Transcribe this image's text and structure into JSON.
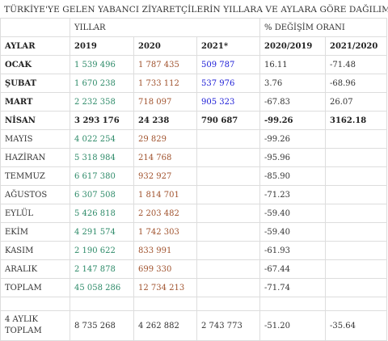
{
  "title": "TÜRKİYE'YE GELEN YABANCI ZİYARETÇİLERİN YILLARA VE AYLARA GÖRE DAĞILIMI",
  "header": {
    "group_years": "YILLAR",
    "group_change": "% DEĞİŞİM ORANI",
    "col_month": "AYLAR",
    "col_2019": "2019",
    "col_2020": "2020",
    "col_2021": "2021*",
    "col_ch1": "2020/2019",
    "col_ch2": "2021/2020"
  },
  "rows": [
    {
      "month": "OCAK",
      "y2019": "1 539 496",
      "y2020": "1 787 435",
      "y2021": "509 787",
      "ch1": "16.11",
      "ch2": "-71.48",
      "bold": true
    },
    {
      "month": "ŞUBAT",
      "y2019": "1 670 238",
      "y2020": "1 733 112",
      "y2021": "537 976",
      "ch1": "3.76",
      "ch2": "-68.96",
      "bold": true
    },
    {
      "month": "MART",
      "y2019": "2 232 358",
      "y2020": "718 097",
      "y2021": "905 323",
      "ch1": "-67.83",
      "ch2": "26.07",
      "bold": true
    },
    {
      "month": "NİSAN",
      "y2019": "3 293 176",
      "y2020": "24 238",
      "y2021": "790 687",
      "ch1": "-99.26",
      "ch2": "3162.18",
      "bold": true
    },
    {
      "month": "MAYIS",
      "y2019": "4 022 254",
      "y2020": "29 829",
      "y2021": "",
      "ch1": "-99.26",
      "ch2": ""
    },
    {
      "month": "HAZİRAN",
      "y2019": "5 318 984",
      "y2020": "214 768",
      "y2021": "",
      "ch1": "-95.96",
      "ch2": ""
    },
    {
      "month": "TEMMUZ",
      "y2019": "6 617 380",
      "y2020": "932 927",
      "y2021": "",
      "ch1": "-85.90",
      "ch2": ""
    },
    {
      "month": "AĞUSTOS",
      "y2019": "6 307 508",
      "y2020": "1 814 701",
      "y2021": "",
      "ch1": "-71.23",
      "ch2": ""
    },
    {
      "month": "EYLÜL",
      "y2019": "5 426 818",
      "y2020": "2 203 482",
      "y2021": "",
      "ch1": "-59.40",
      "ch2": ""
    },
    {
      "month": "EKİM",
      "y2019": "4 291 574",
      "y2020": "1 742 303",
      "y2021": "",
      "ch1": "-59.40",
      "ch2": ""
    },
    {
      "month": "KASIM",
      "y2019": "2 190 622",
      "y2020": "833 991",
      "y2021": "",
      "ch1": "-61.93",
      "ch2": ""
    },
    {
      "month": "ARALIK",
      "y2019": "2 147 878",
      "y2020": "699 330",
      "y2021": "",
      "ch1": "-67.44",
      "ch2": ""
    },
    {
      "month": "TOPLAM",
      "y2019": "45 058 286",
      "y2020": "12 734 213",
      "y2021": "",
      "ch1": "-71.74",
      "ch2": ""
    }
  ],
  "summary": {
    "label_line1": "4 AYLIK",
    "label_line2": "TOPLAM",
    "y2019": "8 735 268",
    "y2020": "4 262 882",
    "y2021": "2 743 773",
    "ch1": "-51.20",
    "ch2": "-35.64"
  },
  "colors": {
    "c2019": "#2e8b69",
    "c2020": "#a0522d",
    "c2021": "#1a1ad6"
  }
}
